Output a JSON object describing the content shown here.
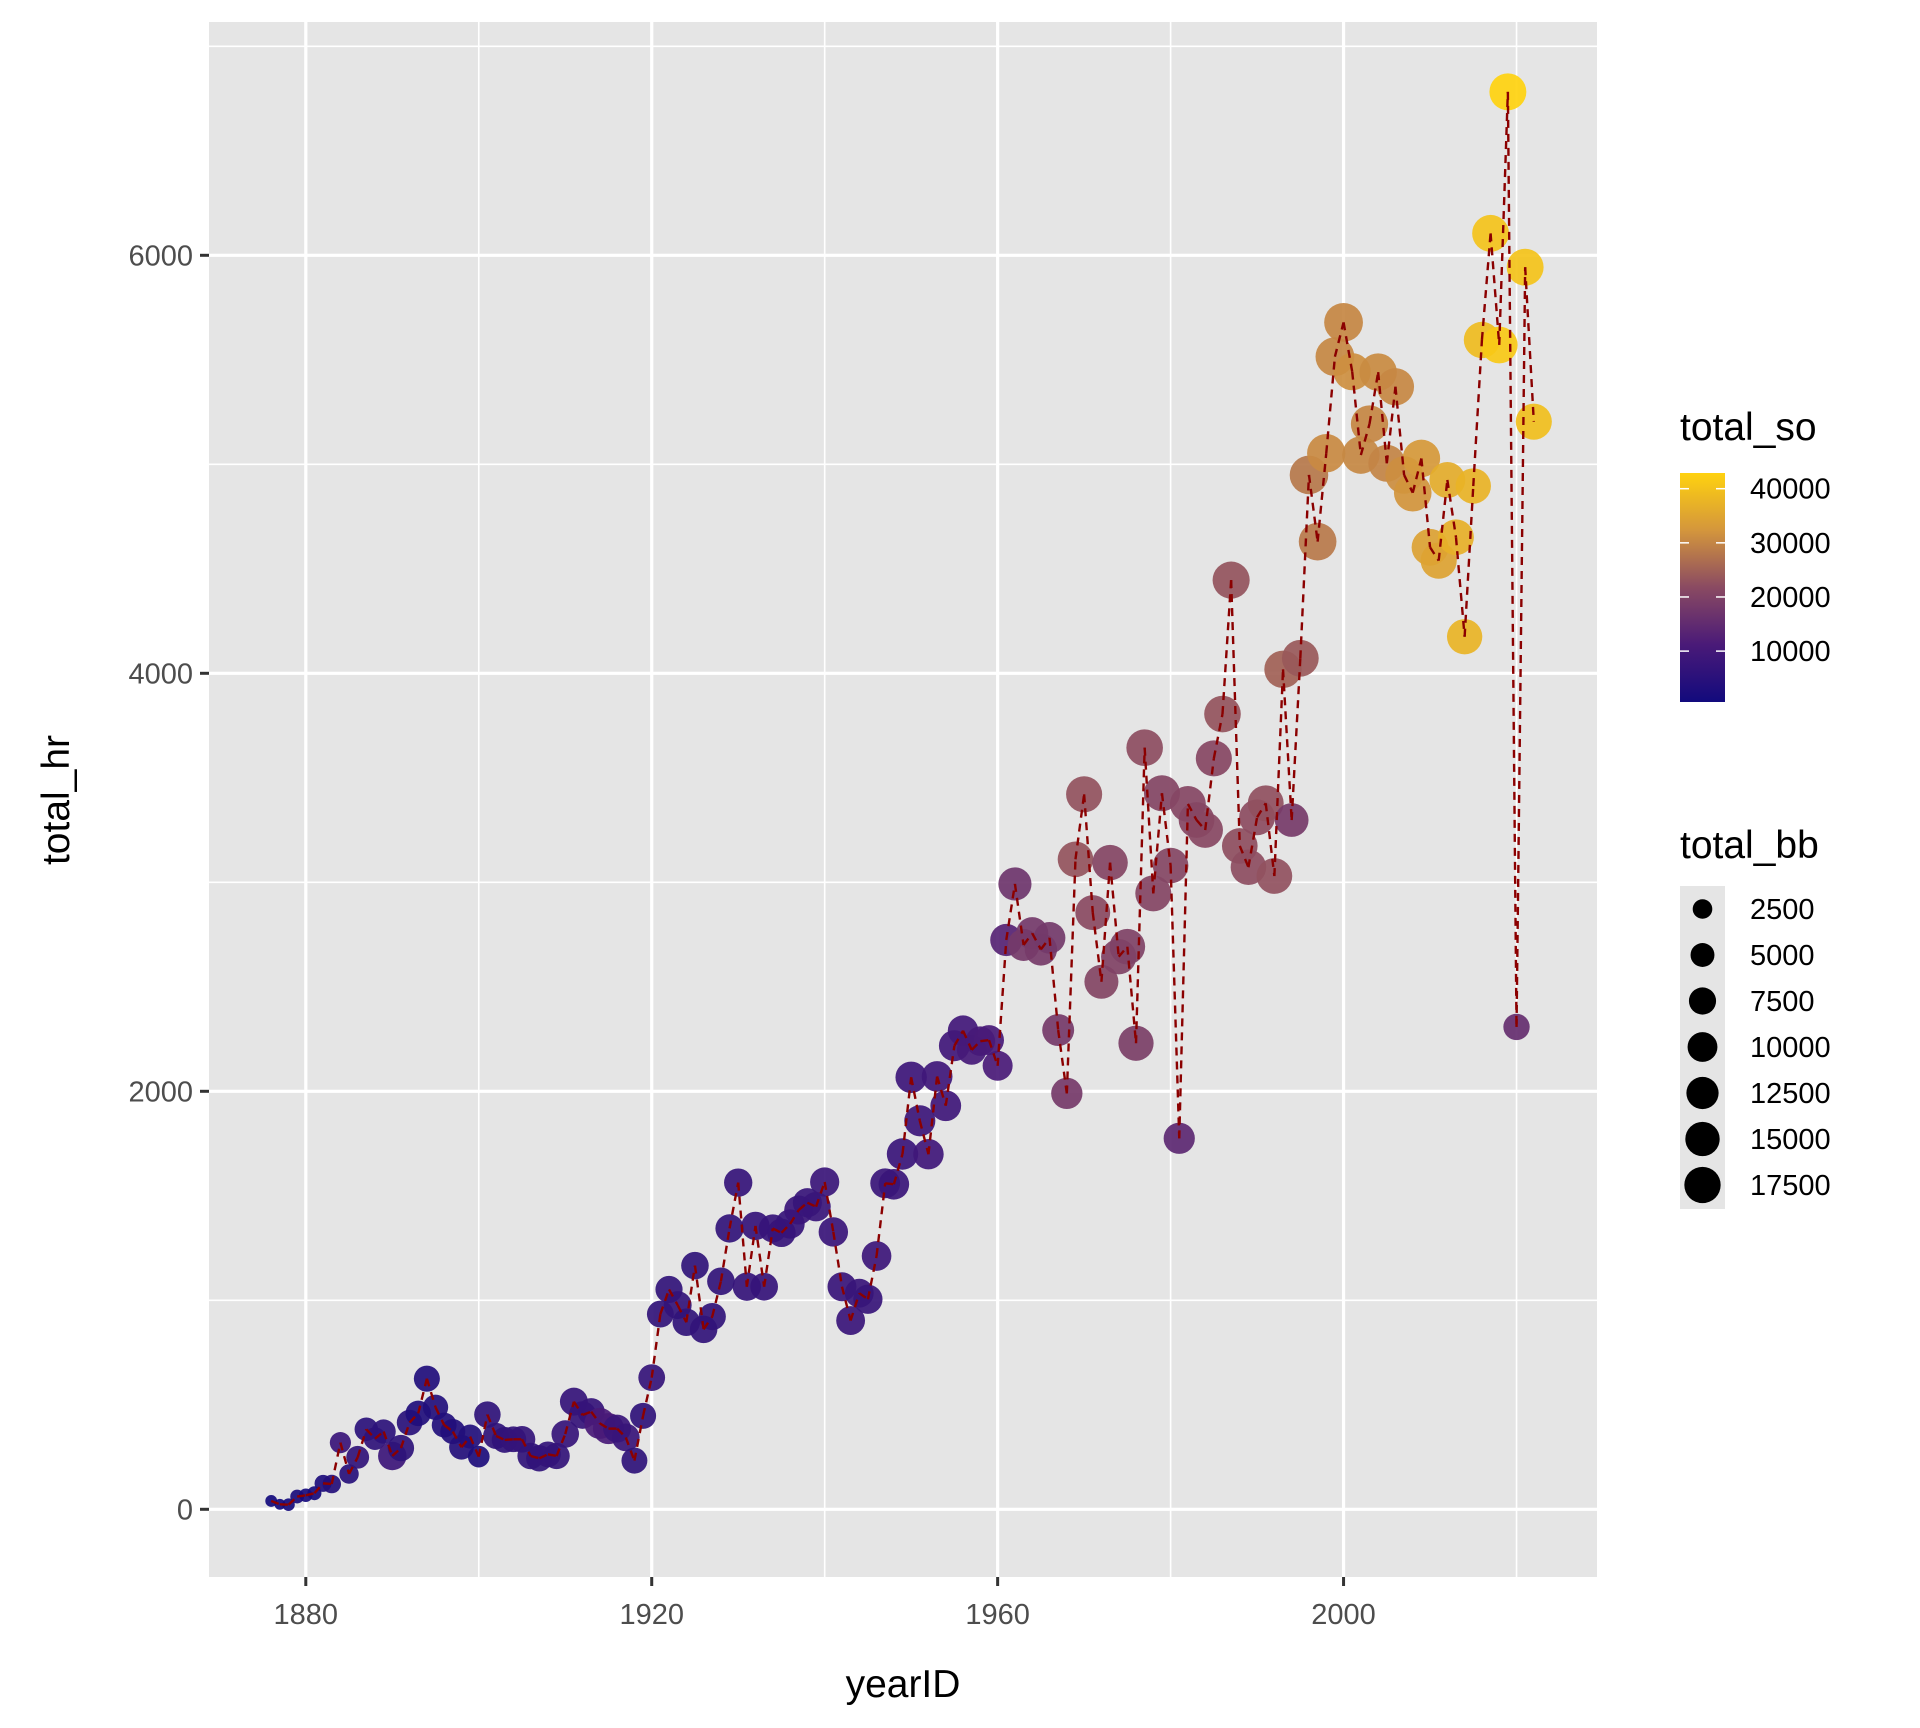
{
  "chart_data": {
    "type": "scatter",
    "title": "",
    "xlabel": "yearID",
    "ylabel": "total_hr",
    "xlim": [
      1870,
      2029
    ],
    "ylim": [
      -300,
      7150
    ],
    "grid": true,
    "x_ticks": [
      1880,
      1920,
      1960,
      2000
    ],
    "x_ticks_labels": [
      "1880",
      "1920",
      "1960",
      "2000"
    ],
    "y_ticks": [
      0,
      2000,
      4000,
      6000
    ],
    "y_ticks_labels": [
      "0",
      "2000",
      "4000",
      "6000"
    ],
    "line": {
      "style": "dashed",
      "color": "#8B0000"
    },
    "color_legend": {
      "title": "total_so",
      "breaks": [
        40000,
        30000,
        20000,
        10000
      ],
      "labels": [
        "40000",
        "30000",
        "20000",
        "10000"
      ],
      "domain": [
        589,
        42823
      ],
      "low_color": "#120a7d",
      "high_color": "#ffd20f"
    },
    "size_legend": {
      "title": "total_bb",
      "breaks": [
        2500,
        5000,
        7500,
        10000,
        12500,
        15000,
        17500
      ],
      "labels": [
        "2500",
        "5000",
        "7500",
        "10000",
        "12500",
        "15000",
        "17500"
      ],
      "domain": [
        317,
        18200
      ]
    },
    "legend_position": "right",
    "x": [
      1876,
      1877,
      1878,
      1879,
      1880,
      1881,
      1882,
      1883,
      1884,
      1885,
      1886,
      1887,
      1888,
      1889,
      1890,
      1891,
      1892,
      1893,
      1894,
      1895,
      1896,
      1897,
      1898,
      1899,
      1900,
      1901,
      1902,
      1903,
      1904,
      1905,
      1906,
      1907,
      1908,
      1909,
      1910,
      1911,
      1912,
      1913,
      1914,
      1915,
      1916,
      1917,
      1918,
      1919,
      1920,
      1921,
      1922,
      1923,
      1924,
      1925,
      1926,
      1927,
      1928,
      1929,
      1930,
      1931,
      1932,
      1933,
      1934,
      1935,
      1936,
      1937,
      1938,
      1939,
      1940,
      1941,
      1942,
      1943,
      1944,
      1945,
      1946,
      1947,
      1948,
      1949,
      1950,
      1951,
      1952,
      1953,
      1954,
      1955,
      1956,
      1957,
      1958,
      1959,
      1960,
      1961,
      1962,
      1963,
      1964,
      1965,
      1966,
      1967,
      1968,
      1969,
      1970,
      1971,
      1972,
      1973,
      1974,
      1975,
      1976,
      1977,
      1978,
      1979,
      1980,
      1981,
      1982,
      1983,
      1984,
      1985,
      1986,
      1987,
      1988,
      1989,
      1990,
      1991,
      1992,
      1993,
      1994,
      1995,
      1996,
      1997,
      1998,
      1999,
      2000,
      2001,
      2002,
      2003,
      2004,
      2005,
      2006,
      2007,
      2008,
      2009,
      2010,
      2011,
      2012,
      2013,
      2014,
      2015,
      2016,
      2017,
      2018,
      2019,
      2020,
      2021,
      2022
    ],
    "total_hr": [
      40,
      24,
      22,
      61,
      67,
      77,
      124,
      121,
      319,
      169,
      249,
      383,
      338,
      372,
      255,
      293,
      415,
      459,
      625,
      488,
      403,
      372,
      297,
      348,
      252,
      453,
      351,
      332,
      335,
      335,
      255,
      244,
      263,
      255,
      360,
      515,
      451,
      467,
      411,
      386,
      386,
      344,
      233,
      447,
      630,
      934,
      1052,
      977,
      895,
      1166,
      861,
      922,
      1091,
      1344,
      1563,
      1065,
      1356,
      1065,
      1344,
      1323,
      1365,
      1432,
      1467,
      1448,
      1566,
      1327,
      1065,
      903,
      1034,
      1005,
      1212,
      1560,
      1555,
      1700,
      2067,
      1859,
      1699,
      2071,
      1931,
      2218,
      2290,
      2198,
      2240,
      2245,
      2122,
      2724,
      2992,
      2700,
      2756,
      2679,
      2734,
      2293,
      1990,
      3110,
      3421,
      2855,
      2524,
      3094,
      2644,
      2692,
      2230,
      3644,
      2947,
      3426,
      3080,
      1775,
      3375,
      3298,
      3250,
      3593,
      3805,
      4446,
      3174,
      3072,
      3311,
      3378,
      3030,
      4019,
      3298,
      4072,
      4949,
      4630,
      5053,
      5515,
      5679,
      5443,
      5044,
      5193,
      5441,
      5005,
      5371,
      4949,
      4864,
      5028,
      4603,
      4539,
      4925,
      4651,
      4175,
      4896,
      5595,
      6105,
      5571,
      6782,
      2308,
      5943,
      5204
    ],
    "total_so": [
      589,
      726,
      1081,
      1843,
      1437,
      1331,
      2604,
      3968,
      8082,
      4633,
      6412,
      5196,
      6059,
      5708,
      8424,
      5927,
      4938,
      3341,
      3333,
      3621,
      3576,
      3519,
      3984,
      3616,
      2697,
      6139,
      6136,
      6180,
      6762,
      7009,
      6469,
      6344,
      6740,
      6792,
      7430,
      7219,
      7146,
      7122,
      11100,
      11000,
      8053,
      7661,
      6032,
      6069,
      7174,
      6617,
      6685,
      6768,
      6436,
      6280,
      6548,
      6413,
      6674,
      6658,
      7143,
      7282,
      7189,
      7134,
      7384,
      7419,
      7434,
      7902,
      7583,
      7674,
      8228,
      8106,
      7834,
      8054,
      7683,
      7641,
      8634,
      8165,
      8035,
      7889,
      8650,
      8598,
      9174,
      9119,
      9118,
      9184,
      9697,
      10169,
      10408,
      10919,
      11099,
      13145,
      17081,
      18207,
      18076,
      18432,
      17956,
      18246,
      18220,
      23073,
      22880,
      21734,
      20582,
      20656,
      20032,
      19868,
      19252,
      22078,
      20701,
      20549,
      20718,
      14126,
      20897,
      21070,
      21311,
      21156,
      23147,
      23109,
      22217,
      22067,
      22036,
      22574,
      22668,
      24968,
      18465,
      23848,
      28050,
      28213,
      30641,
      30308,
      30181,
      31291,
      30281,
      30210,
      30745,
      29820,
      30357,
      31091,
      32166,
      32863,
      34302,
      34525,
      36247,
      36885,
      37505,
      37437,
      38982,
      40104,
      41207,
      42823,
      15586,
      40144,
      39491
    ],
    "total_bb": [
      336,
      317,
      381,
      508,
      469,
      534,
      1200,
      1660,
      2750,
      2000,
      3600,
      4000,
      3500,
      4400,
      7400,
      5800,
      5300,
      5200,
      5600,
      5100,
      4800,
      4900,
      4700,
      4300,
      3000,
      5900,
      5600,
      5500,
      5400,
      6000,
      5900,
      5800,
      5400,
      5800,
      6700,
      7000,
      6700,
      6400,
      9600,
      9700,
      7000,
      6800,
      5500,
      5600,
      6100,
      6200,
      6400,
      7000,
      6700,
      6700,
      6700,
      6400,
      6700,
      7300,
      7300,
      7300,
      7300,
      6800,
      7100,
      7400,
      8000,
      7900,
      7900,
      8200,
      8000,
      8200,
      7800,
      7700,
      7700,
      8000,
      8400,
      8600,
      9200,
      10000,
      10000,
      9700,
      9100,
      9400,
      9400,
      9600,
      9200,
      8400,
      8300,
      8700,
      8700,
      10700,
      11700,
      10600,
      10800,
      10900,
      10300,
      10500,
      9900,
      14300,
      14900,
      13500,
      12600,
      14200,
      14000,
      14300,
      13900,
      15500,
      14800,
      14800,
      14300,
      9800,
      14600,
      14500,
      14300,
      14900,
      15500,
      16100,
      14400,
      14300,
      14700,
      14700,
      14500,
      16500,
      12300,
      15700,
      17900,
      16800,
      17700,
      18200,
      18200,
      16200,
      16500,
      16300,
      16600,
      15900,
      16200,
      16600,
      16700,
      16600,
      15800,
      15000,
      14700,
      14600,
      14000,
      14100,
      15100,
      15800,
      15700,
      15900,
      5800,
      15800,
      14900
    ]
  }
}
